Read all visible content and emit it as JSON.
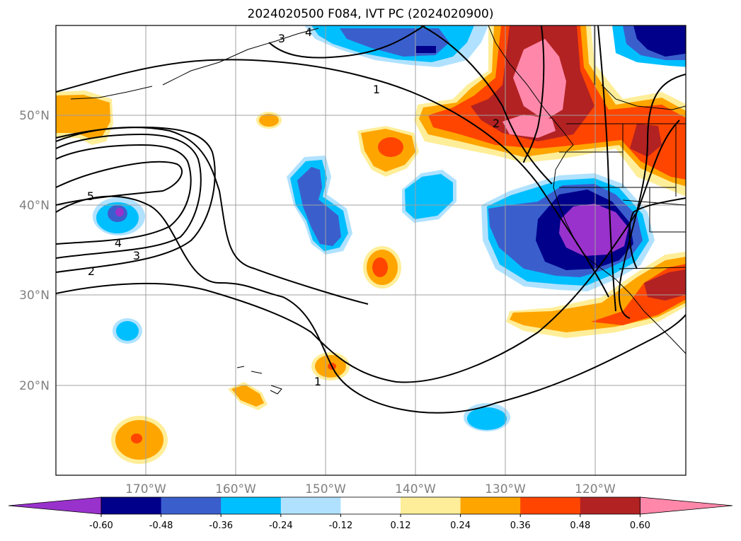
{
  "title": "2024020500 F084, IVT PC (2024020900)",
  "longitude_labels": [
    "170°W",
    "160°W",
    "150°W",
    "140°W",
    "130°W",
    "120°W"
  ],
  "latitude_labels": [
    "50°N",
    "40°N",
    "30°N",
    "20°N"
  ],
  "contour_labels": [
    "1",
    "1",
    "2",
    "2",
    "3",
    "3",
    "4",
    "5",
    "4"
  ],
  "colorbar": {
    "colors": [
      "#9932cc",
      "#00008b",
      "#3a5fcd",
      "#00bfff",
      "#b0e2ff",
      "#ffffff",
      "#ffee99",
      "#ffa500",
      "#ff4500",
      "#b22222",
      "#ff88aa"
    ],
    "tick_labels": [
      "-0.60",
      "-0.48",
      "-0.36",
      "-0.24",
      "-0.12",
      "0.12",
      "0.24",
      "0.36",
      "0.48",
      "0.60"
    ]
  }
}
